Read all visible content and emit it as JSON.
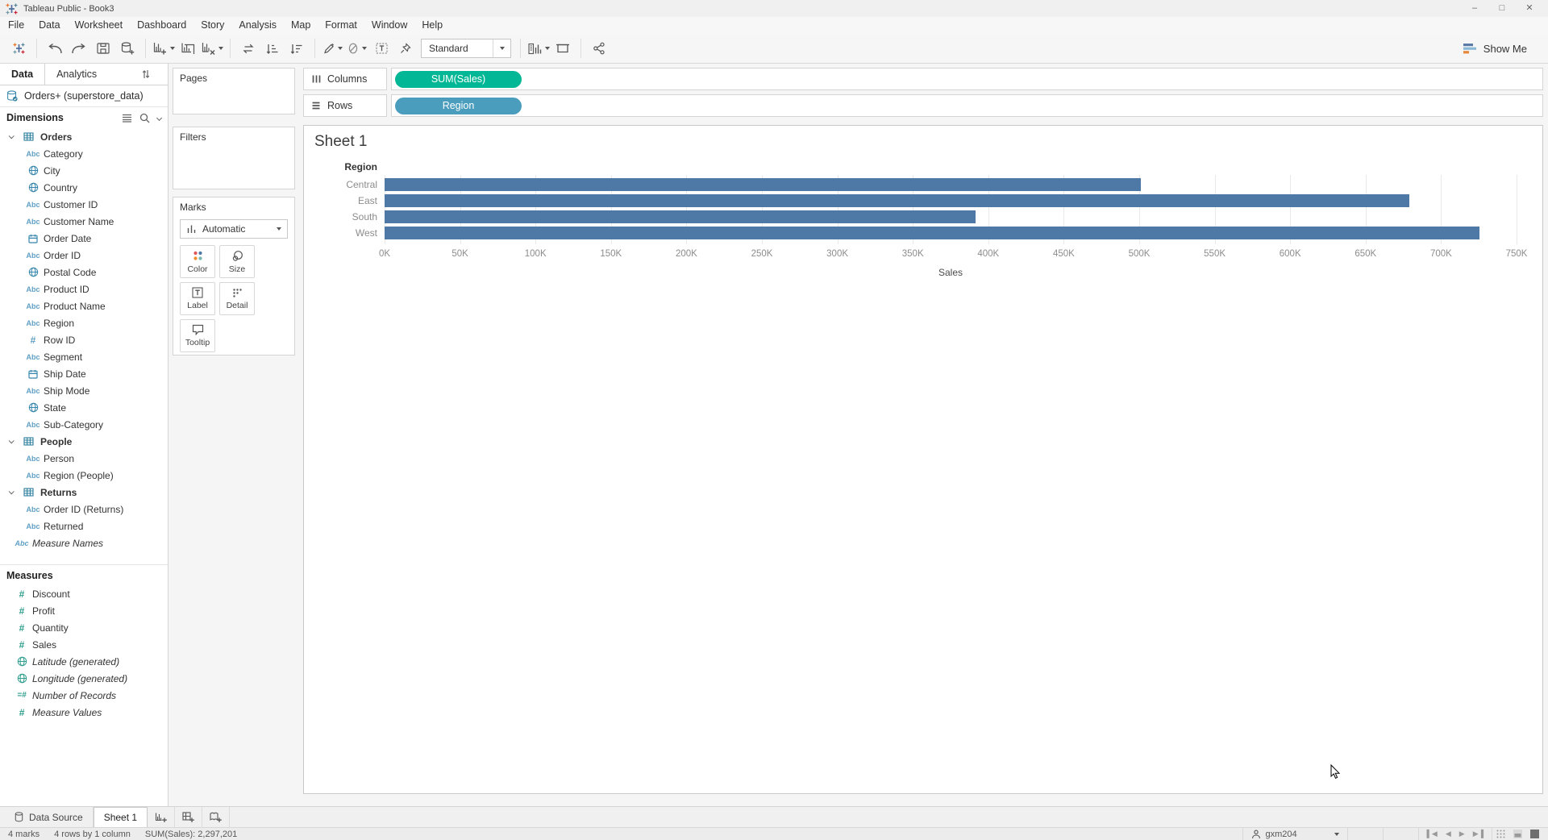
{
  "window": {
    "title": "Tableau Public - Book3"
  },
  "menu": {
    "items": [
      "File",
      "Data",
      "Worksheet",
      "Dashboard",
      "Story",
      "Analysis",
      "Map",
      "Format",
      "Window",
      "Help"
    ]
  },
  "toolbar": {
    "fit_selector": "Standard",
    "show_me_label": "Show Me",
    "buttons": [
      {
        "icon": "tableau-logo",
        "name": "tableau-logo",
        "interactable": false
      },
      {
        "divider": true
      },
      {
        "icon": "undo",
        "name": "undo-button"
      },
      {
        "icon": "redo",
        "name": "redo-button"
      },
      {
        "icon": "save",
        "name": "save-button"
      },
      {
        "icon": "new-data-source",
        "name": "new-data-source-button"
      },
      {
        "divider": true
      },
      {
        "icon": "new-worksheet",
        "name": "new-worksheet-button",
        "caret": true
      },
      {
        "icon": "duplicate",
        "name": "duplicate-sheet-button"
      },
      {
        "icon": "clear-sheet",
        "name": "clear-sheet-button",
        "caret": true
      },
      {
        "divider": true
      },
      {
        "icon": "swap",
        "name": "swap-rows-columns-button"
      },
      {
        "icon": "sort-ascending",
        "name": "sort-ascending-button"
      },
      {
        "icon": "sort-descending",
        "name": "sort-descending-button"
      },
      {
        "divider": true
      },
      {
        "icon": "highlight",
        "name": "highlight-button",
        "caret": true
      },
      {
        "icon": "group-members",
        "name": "group-members-button",
        "caret": true
      },
      {
        "icon": "show-mark-labels",
        "name": "show-mark-labels-button"
      },
      {
        "icon": "fix-axes",
        "name": "fix-axes-button"
      },
      {
        "fit": true
      },
      {
        "divider": true
      },
      {
        "icon": "show-hide-cards",
        "name": "show-hide-cards-button",
        "caret": true
      },
      {
        "icon": "presentation-mode",
        "name": "presentation-mode-button"
      },
      {
        "divider": true
      },
      {
        "icon": "share",
        "name": "share-button"
      }
    ]
  },
  "data_pane": {
    "tabs": {
      "data": "Data",
      "analytics": "Analytics"
    },
    "source": "Orders+ (superstore_data)",
    "dimensions_header": "Dimensions",
    "dimension_items": [
      {
        "label": "Orders",
        "icon": "table",
        "group": true
      },
      {
        "label": "Category",
        "icon": "abc"
      },
      {
        "label": "City",
        "icon": "globe"
      },
      {
        "label": "Country",
        "icon": "globe"
      },
      {
        "label": "Customer ID",
        "icon": "abc"
      },
      {
        "label": "Customer Name",
        "icon": "abc"
      },
      {
        "label": "Order Date",
        "icon": "calendar"
      },
      {
        "label": "Order ID",
        "icon": "abc"
      },
      {
        "label": "Postal Code",
        "icon": "globe"
      },
      {
        "label": "Product ID",
        "icon": "abc"
      },
      {
        "label": "Product Name",
        "icon": "abc"
      },
      {
        "label": "Region",
        "icon": "abc"
      },
      {
        "label": "Row ID",
        "icon": "hash"
      },
      {
        "label": "Segment",
        "icon": "abc"
      },
      {
        "label": "Ship Date",
        "icon": "calendar"
      },
      {
        "label": "Ship Mode",
        "icon": "abc"
      },
      {
        "label": "State",
        "icon": "globe"
      },
      {
        "label": "Sub-Category",
        "icon": "abc"
      },
      {
        "label": "People",
        "icon": "table",
        "group": true
      },
      {
        "label": "Person",
        "icon": "abc"
      },
      {
        "label": "Region (People)",
        "icon": "abc"
      },
      {
        "label": "Returns",
        "icon": "table",
        "group": true
      },
      {
        "label": "Order ID (Returns)",
        "icon": "abc"
      },
      {
        "label": "Returned",
        "icon": "abc"
      },
      {
        "label": "Measure Names",
        "icon": "abc",
        "italic": true,
        "loose": true
      }
    ],
    "measures_header": "Measures",
    "measure_items": [
      {
        "label": "Discount",
        "icon": "hash"
      },
      {
        "label": "Profit",
        "icon": "hash"
      },
      {
        "label": "Quantity",
        "icon": "hash"
      },
      {
        "label": "Sales",
        "icon": "hash"
      },
      {
        "label": "Latitude (generated)",
        "icon": "globe",
        "italic": true
      },
      {
        "label": "Longitude (generated)",
        "icon": "globe",
        "italic": true
      },
      {
        "label": "Number of Records",
        "icon": "hash-eq",
        "italic": true
      },
      {
        "label": "Measure Values",
        "icon": "hash",
        "italic": true
      }
    ]
  },
  "cards": {
    "pages_label": "Pages",
    "filters_label": "Filters",
    "marks_label": "Marks",
    "mark_type": "Automatic",
    "marks_buttons": [
      {
        "label": "Color",
        "icon": "color"
      },
      {
        "label": "Size",
        "icon": "size"
      },
      {
        "label": "Label",
        "icon": "mlabel"
      },
      {
        "label": "Detail",
        "icon": "detail"
      },
      {
        "label": "Tooltip",
        "icon": "tooltip"
      }
    ]
  },
  "shelves": {
    "columns_label": "Columns",
    "rows_label": "Rows",
    "columns_pills": [
      {
        "label": "SUM(Sales)",
        "type": "measure"
      }
    ],
    "rows_pills": [
      {
        "label": "Region",
        "type": "dimension"
      }
    ]
  },
  "colors": {
    "measure_pill": "#02b795",
    "dimension_pill": "#4b9dbd",
    "bar": "#4e79a7"
  },
  "chart_data": {
    "type": "bar",
    "orientation": "horizontal",
    "title": "Sheet 1",
    "row_header": "Region",
    "categories": [
      "Central",
      "East",
      "South",
      "West"
    ],
    "values": [
      501240,
      678781,
      391722,
      725458
    ],
    "xlabel": "Sales",
    "xlim": [
      0,
      750000
    ],
    "ticks": [
      "0K",
      "50K",
      "100K",
      "150K",
      "200K",
      "250K",
      "300K",
      "350K",
      "400K",
      "450K",
      "500K",
      "550K",
      "600K",
      "650K",
      "700K",
      "750K"
    ],
    "grid": "vertical-light",
    "legend": "none"
  },
  "sheet_tabs": {
    "data_source_label": "Data Source",
    "sheets": [
      {
        "label": "Sheet 1",
        "active": true
      }
    ]
  },
  "status_bar": {
    "marks": "4 marks",
    "size": "4 rows by 1 column",
    "aggregate": "SUM(Sales): 2,297,201",
    "user": "gxm204"
  }
}
